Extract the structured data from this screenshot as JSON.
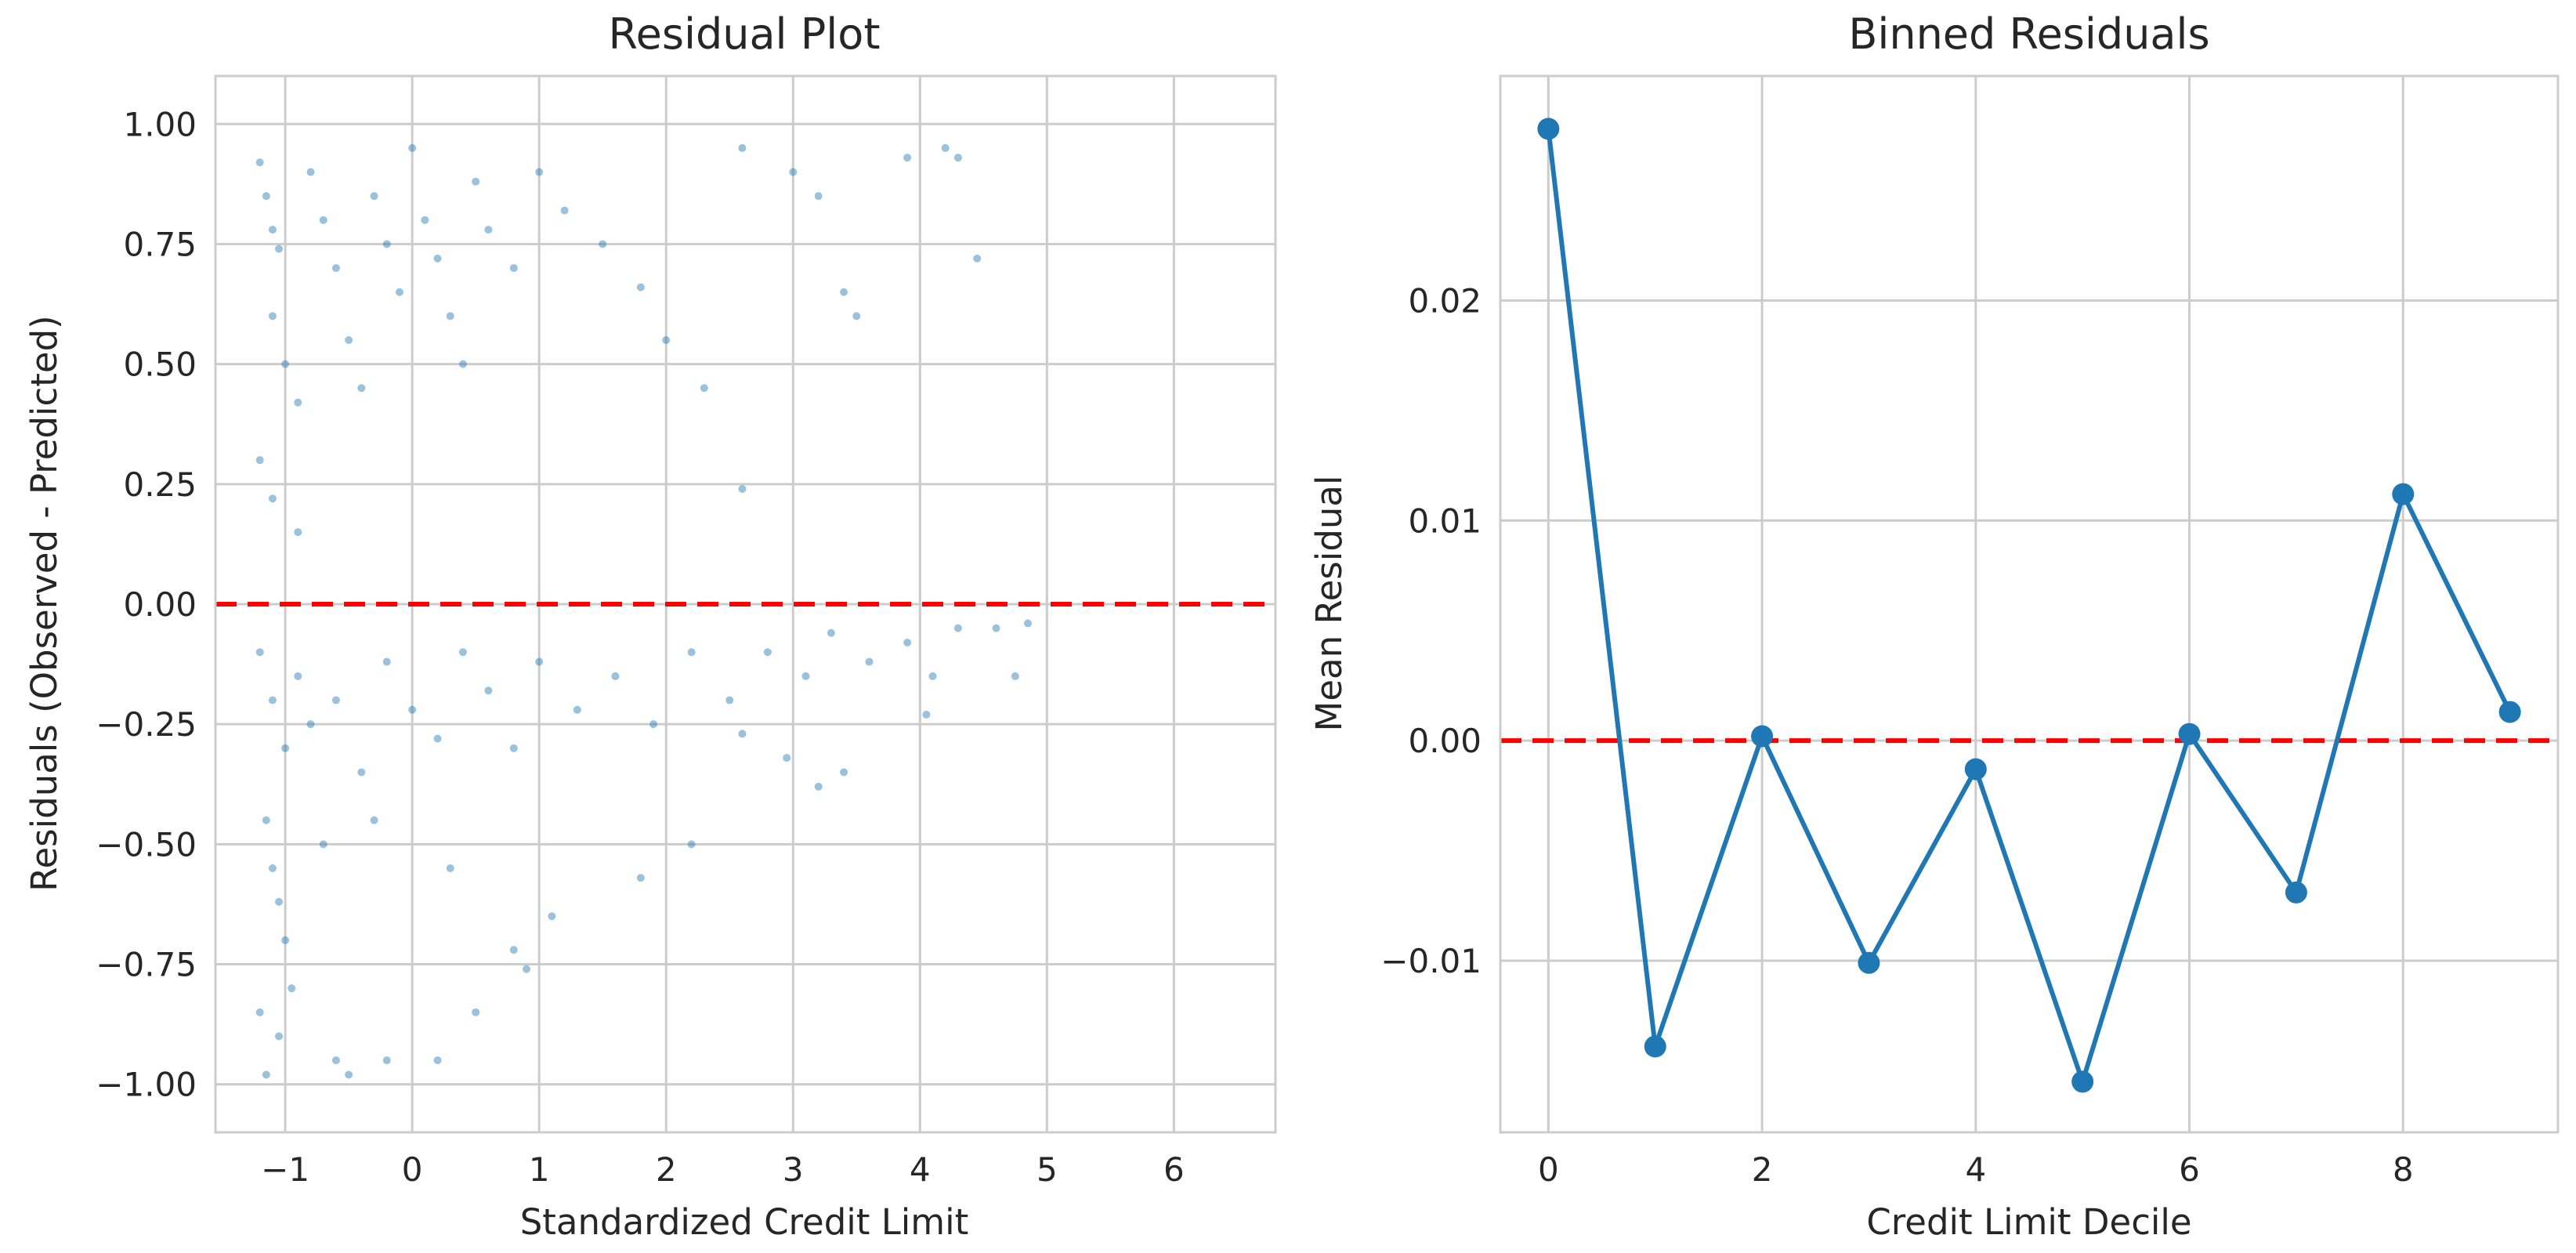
{
  "colors": {
    "series": "#1f77b4",
    "reference_line": "#ff0000",
    "grid": "#cccccc",
    "text": "#262626"
  },
  "chart_data": [
    {
      "type": "scatter",
      "title": "Residual Plot",
      "xlabel": "Standardized Credit Limit",
      "ylabel": "Residuals (Observed - Predicted)",
      "xlim": [
        -1.55,
        6.8
      ],
      "ylim": [
        -1.1,
        1.1
      ],
      "xticks": [
        -1,
        0,
        1,
        2,
        3,
        4,
        5,
        6
      ],
      "xtick_labels": [
        "−1",
        "0",
        "1",
        "2",
        "3",
        "4",
        "5",
        "6"
      ],
      "yticks": [
        1.0,
        0.75,
        0.5,
        0.25,
        0.0,
        -0.25,
        -0.5,
        -0.75,
        -1.0
      ],
      "ytick_labels": [
        "1.00",
        "0.75",
        "0.50",
        "0.25",
        "0.00",
        "−0.25",
        "−0.50",
        "−0.75",
        "−1.00"
      ],
      "reference_line_y": 0,
      "grid": true,
      "points": [
        [
          -1.2,
          0.92
        ],
        [
          -1.15,
          0.85
        ],
        [
          -1.1,
          0.78
        ],
        [
          -1.05,
          0.74
        ],
        [
          -1.1,
          0.6
        ],
        [
          -1.0,
          0.5
        ],
        [
          -0.9,
          0.42
        ],
        [
          -1.2,
          0.3
        ],
        [
          -1.1,
          0.22
        ],
        [
          -0.8,
          0.9
        ],
        [
          -0.7,
          0.8
        ],
        [
          -0.6,
          0.7
        ],
        [
          -0.5,
          0.55
        ],
        [
          -0.4,
          0.45
        ],
        [
          -0.3,
          0.85
        ],
        [
          -0.2,
          0.75
        ],
        [
          -0.1,
          0.65
        ],
        [
          0.0,
          0.95
        ],
        [
          0.1,
          0.8
        ],
        [
          0.2,
          0.72
        ],
        [
          0.3,
          0.6
        ],
        [
          0.4,
          0.5
        ],
        [
          0.5,
          0.88
        ],
        [
          0.6,
          0.78
        ],
        [
          0.8,
          0.7
        ],
        [
          1.0,
          0.9
        ],
        [
          1.2,
          0.82
        ],
        [
          1.5,
          0.75
        ],
        [
          1.8,
          0.66
        ],
        [
          2.0,
          0.55
        ],
        [
          2.3,
          0.45
        ],
        [
          2.6,
          0.95
        ],
        [
          2.6,
          0.24
        ],
        [
          3.0,
          0.9
        ],
        [
          3.2,
          0.85
        ],
        [
          3.4,
          0.65
        ],
        [
          3.5,
          0.6
        ],
        [
          3.9,
          0.93
        ],
        [
          4.2,
          0.95
        ],
        [
          4.3,
          0.93
        ],
        [
          4.45,
          0.72
        ],
        [
          -0.9,
          0.15
        ],
        [
          -1.2,
          -0.1
        ],
        [
          -1.1,
          -0.2
        ],
        [
          -1.0,
          -0.3
        ],
        [
          -0.9,
          -0.15
        ],
        [
          -0.8,
          -0.25
        ],
        [
          -0.6,
          -0.2
        ],
        [
          -0.4,
          -0.35
        ],
        [
          -0.2,
          -0.12
        ],
        [
          0.0,
          -0.22
        ],
        [
          0.2,
          -0.28
        ],
        [
          0.4,
          -0.1
        ],
        [
          0.6,
          -0.18
        ],
        [
          0.8,
          -0.3
        ],
        [
          1.0,
          -0.12
        ],
        [
          1.3,
          -0.22
        ],
        [
          1.6,
          -0.15
        ],
        [
          1.9,
          -0.25
        ],
        [
          2.2,
          -0.1
        ],
        [
          2.5,
          -0.2
        ],
        [
          2.6,
          -0.27
        ],
        [
          2.8,
          -0.1
        ],
        [
          3.1,
          -0.15
        ],
        [
          3.3,
          -0.06
        ],
        [
          3.6,
          -0.12
        ],
        [
          3.9,
          -0.08
        ],
        [
          4.1,
          -0.15
        ],
        [
          4.3,
          -0.05
        ],
        [
          4.6,
          -0.05
        ],
        [
          4.85,
          -0.04
        ],
        [
          4.75,
          -0.15
        ],
        [
          -1.15,
          -0.45
        ],
        [
          -1.1,
          -0.55
        ],
        [
          -1.05,
          -0.62
        ],
        [
          -1.0,
          -0.7
        ],
        [
          -1.2,
          -0.85
        ],
        [
          -1.15,
          -0.98
        ],
        [
          -1.05,
          -0.9
        ],
        [
          -0.95,
          -0.8
        ],
        [
          -0.6,
          -0.95
        ],
        [
          -0.5,
          -0.98
        ],
        [
          -0.2,
          -0.95
        ],
        [
          0.2,
          -0.95
        ],
        [
          -0.7,
          -0.5
        ],
        [
          -0.3,
          -0.45
        ],
        [
          0.3,
          -0.55
        ],
        [
          0.5,
          -0.85
        ],
        [
          0.8,
          -0.72
        ],
        [
          0.9,
          -0.76
        ],
        [
          1.1,
          -0.65
        ],
        [
          1.8,
          -0.57
        ],
        [
          2.2,
          -0.5
        ],
        [
          3.2,
          -0.38
        ],
        [
          3.4,
          -0.35
        ],
        [
          4.05,
          -0.23
        ],
        [
          2.95,
          -0.32
        ]
      ]
    },
    {
      "type": "line",
      "title": "Binned Residuals",
      "xlabel": "Credit Limit Decile",
      "ylabel": "Mean Residual",
      "xlim": [
        -0.45,
        9.45
      ],
      "ylim": [
        -0.0178,
        0.0302
      ],
      "xticks": [
        0,
        2,
        4,
        6,
        8
      ],
      "xtick_labels": [
        "0",
        "2",
        "4",
        "6",
        "8"
      ],
      "yticks": [
        0.02,
        0.01,
        0.0,
        -0.01
      ],
      "ytick_labels": [
        "0.02",
        "0.01",
        "0.00",
        "−0.01"
      ],
      "reference_line_y": 0,
      "grid": true,
      "x": [
        0,
        1,
        2,
        3,
        4,
        5,
        6,
        7,
        8,
        9
      ],
      "y": [
        0.0278,
        -0.0139,
        0.0002,
        -0.0101,
        -0.0013,
        -0.0155,
        0.0003,
        -0.0069,
        0.0112,
        0.0013
      ]
    }
  ]
}
